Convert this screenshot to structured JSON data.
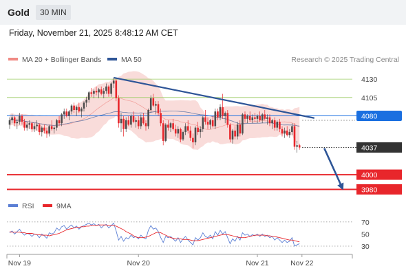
{
  "header": {
    "symbol": "Gold",
    "timeframe": "30 MIN",
    "datetime": "Friday, November 21, 2025 8:48:12 AM CET"
  },
  "legend": {
    "items": [
      {
        "label": "MA 20 + Bollinger Bands",
        "color": "#f08a84"
      },
      {
        "label": "MA 50",
        "color": "#2e5597"
      }
    ],
    "credit": "Research © 2025 Trading Central"
  },
  "rsi_legend": {
    "items": [
      {
        "label": "RSI",
        "color": "#5b7fd4"
      },
      {
        "label": "9MA",
        "color": "#e8262b"
      }
    ]
  },
  "colors": {
    "up": "#4d4d4d",
    "down": "#e8262b",
    "wick": "#555555",
    "band": "#f7d0cd",
    "ma20": "#f08a84",
    "ma50": "#2e5597",
    "trendline": "#2e5597",
    "resistance": "#9ccc65",
    "pivot": "#1a6fe0",
    "support": "#e8262b",
    "current": "#333333"
  },
  "chart_data": [
    {
      "type": "line",
      "title": "Gold 30 MIN",
      "x_ticks": [
        {
          "label": "Nov 19",
          "i": 4
        },
        {
          "label": "Nov 20",
          "i": 52
        },
        {
          "label": "Nov 21",
          "i": 100
        },
        {
          "label": "Nov 22",
          "i": 118
        }
      ],
      "ylim": [
        3972,
        4146
      ],
      "levels": [
        {
          "value": 4130,
          "label": "4130",
          "kind": "resistance"
        },
        {
          "value": 4105,
          "label": "4105",
          "kind": "resistance"
        },
        {
          "value": 4080,
          "label": "4080",
          "kind": "pivot"
        },
        {
          "value": 4037,
          "label": "4037",
          "kind": "current"
        },
        {
          "value": 4000,
          "label": "4000",
          "kind": "support"
        },
        {
          "value": 3980,
          "label": "3980",
          "kind": "support"
        }
      ],
      "trendline": {
        "from": {
          "i": 42,
          "value": 4132
        },
        "to": {
          "i": 123,
          "value": 4077
        }
      },
      "arrow": {
        "from": {
          "i": 127,
          "value": 4036
        },
        "to": {
          "i": 134,
          "value": 3984
        }
      },
      "candles": [
        [
          4068,
          4078,
          4062,
          4074
        ],
        [
          4074,
          4082,
          4070,
          4078
        ],
        [
          4078,
          4080,
          4066,
          4070
        ],
        [
          4070,
          4076,
          4062,
          4072
        ],
        [
          4072,
          4084,
          4068,
          4080
        ],
        [
          4080,
          4082,
          4068,
          4072
        ],
        [
          4072,
          4076,
          4060,
          4064
        ],
        [
          4064,
          4072,
          4060,
          4068
        ],
        [
          4068,
          4074,
          4062,
          4070
        ],
        [
          4070,
          4072,
          4058,
          4062
        ],
        [
          4062,
          4070,
          4058,
          4066
        ],
        [
          4066,
          4074,
          4060,
          4068
        ],
        [
          4068,
          4070,
          4054,
          4058
        ],
        [
          4058,
          4066,
          4052,
          4064
        ],
        [
          4064,
          4068,
          4056,
          4060
        ],
        [
          4060,
          4064,
          4050,
          4056
        ],
        [
          4056,
          4068,
          4052,
          4066
        ],
        [
          4066,
          4074,
          4060,
          4062
        ],
        [
          4062,
          4066,
          4056,
          4064
        ],
        [
          4064,
          4076,
          4060,
          4074
        ],
        [
          4074,
          4080,
          4066,
          4070
        ],
        [
          4070,
          4084,
          4066,
          4082
        ],
        [
          4082,
          4090,
          4076,
          4086
        ],
        [
          4086,
          4090,
          4078,
          4080
        ],
        [
          4080,
          4088,
          4074,
          4086
        ],
        [
          4086,
          4096,
          4082,
          4094
        ],
        [
          4094,
          4098,
          4084,
          4088
        ],
        [
          4088,
          4094,
          4080,
          4092
        ],
        [
          4092,
          4098,
          4084,
          4086
        ],
        [
          4086,
          4092,
          4078,
          4090
        ],
        [
          4090,
          4100,
          4086,
          4098
        ],
        [
          4098,
          4106,
          4092,
          4102
        ],
        [
          4102,
          4114,
          4098,
          4112
        ],
        [
          4112,
          4118,
          4106,
          4110
        ],
        [
          4110,
          4116,
          4104,
          4114
        ],
        [
          4114,
          4120,
          4108,
          4112
        ],
        [
          4112,
          4118,
          4104,
          4116
        ],
        [
          4116,
          4120,
          4108,
          4110
        ],
        [
          4110,
          4118,
          4104,
          4114
        ],
        [
          4114,
          4124,
          4110,
          4120
        ],
        [
          4120,
          4122,
          4106,
          4110
        ],
        [
          4110,
          4126,
          4106,
          4124
        ],
        [
          4124,
          4132,
          4118,
          4128
        ],
        [
          4128,
          4130,
          4100,
          4104
        ],
        [
          4104,
          4108,
          4064,
          4070
        ],
        [
          4070,
          4084,
          4058,
          4076
        ],
        [
          4076,
          4080,
          4052,
          4062
        ],
        [
          4062,
          4078,
          4058,
          4074
        ],
        [
          4074,
          4080,
          4066,
          4068
        ],
        [
          4068,
          4082,
          4064,
          4080
        ],
        [
          4080,
          4086,
          4070,
          4072
        ],
        [
          4072,
          4078,
          4064,
          4074
        ],
        [
          4074,
          4080,
          4062,
          4066
        ],
        [
          4066,
          4082,
          4062,
          4078
        ],
        [
          4078,
          4084,
          4068,
          4070
        ],
        [
          4070,
          4074,
          4060,
          4066
        ],
        [
          4066,
          4090,
          4062,
          4088
        ],
        [
          4088,
          4108,
          4084,
          4104
        ],
        [
          4104,
          4110,
          4092,
          4094
        ],
        [
          4094,
          4100,
          4082,
          4096
        ],
        [
          4096,
          4100,
          4080,
          4084
        ],
        [
          4084,
          4090,
          4066,
          4070
        ],
        [
          4070,
          4074,
          4040,
          4046
        ],
        [
          4046,
          4070,
          4044,
          4068
        ],
        [
          4068,
          4074,
          4060,
          4064
        ],
        [
          4064,
          4072,
          4058,
          4070
        ],
        [
          4070,
          4076,
          4060,
          4062
        ],
        [
          4062,
          4068,
          4052,
          4056
        ],
        [
          4056,
          4066,
          4050,
          4062
        ],
        [
          4062,
          4064,
          4044,
          4048
        ],
        [
          4048,
          4060,
          4046,
          4058
        ],
        [
          4058,
          4070,
          4054,
          4066
        ],
        [
          4066,
          4074,
          4056,
          4060
        ],
        [
          4060,
          4066,
          4046,
          4050
        ],
        [
          4050,
          4056,
          4036,
          4044
        ],
        [
          4044,
          4066,
          4040,
          4064
        ],
        [
          4064,
          4072,
          4054,
          4058
        ],
        [
          4058,
          4066,
          4050,
          4062
        ],
        [
          4062,
          4080,
          4058,
          4078
        ],
        [
          4078,
          4088,
          4068,
          4072
        ],
        [
          4072,
          4078,
          4062,
          4068
        ],
        [
          4068,
          4076,
          4062,
          4074
        ],
        [
          4074,
          4080,
          4064,
          4066
        ],
        [
          4066,
          4090,
          4062,
          4086
        ],
        [
          4086,
          4090,
          4074,
          4078
        ],
        [
          4078,
          4096,
          4074,
          4092
        ],
        [
          4092,
          4110,
          4076,
          4080
        ],
        [
          4080,
          4086,
          4070,
          4084
        ],
        [
          4084,
          4088,
          4064,
          4068
        ],
        [
          4068,
          4070,
          4044,
          4048
        ],
        [
          4048,
          4062,
          4042,
          4060
        ],
        [
          4060,
          4066,
          4048,
          4052
        ],
        [
          4052,
          4072,
          4048,
          4068
        ],
        [
          4068,
          4074,
          4052,
          4056
        ],
        [
          4056,
          4084,
          4054,
          4082
        ],
        [
          4082,
          4086,
          4072,
          4076
        ],
        [
          4076,
          4082,
          4070,
          4080
        ],
        [
          4080,
          4086,
          4072,
          4074
        ],
        [
          4074,
          4082,
          4070,
          4078
        ],
        [
          4078,
          4084,
          4072,
          4076
        ],
        [
          4076,
          4082,
          4070,
          4080
        ],
        [
          4080,
          4086,
          4072,
          4074
        ],
        [
          4074,
          4084,
          4070,
          4082
        ],
        [
          4082,
          4088,
          4074,
          4076
        ],
        [
          4076,
          4082,
          4068,
          4078
        ],
        [
          4078,
          4082,
          4066,
          4070
        ],
        [
          4070,
          4076,
          4062,
          4074
        ],
        [
          4074,
          4078,
          4060,
          4064
        ],
        [
          4064,
          4074,
          4060,
          4072
        ],
        [
          4072,
          4076,
          4058,
          4062
        ],
        [
          4062,
          4066,
          4052,
          4056
        ],
        [
          4056,
          4064,
          4050,
          4060
        ],
        [
          4060,
          4066,
          4052,
          4054
        ],
        [
          4054,
          4062,
          4050,
          4058
        ],
        [
          4058,
          4070,
          4054,
          4066
        ],
        [
          4066,
          4070,
          4034,
          4038
        ],
        [
          4038,
          4046,
          4030,
          4040
        ],
        [
          4040,
          4042,
          4034,
          4037
        ]
      ]
    },
    {
      "type": "line",
      "title": "RSI",
      "ylim": [
        22,
        80
      ],
      "y_ticks": [
        30,
        50,
        70
      ],
      "levels": [
        30,
        70
      ],
      "series": [
        {
          "name": "RSI",
          "color": "#5b7fd4",
          "values": [
            52,
            55,
            50,
            54,
            58,
            52,
            48,
            51,
            50,
            46,
            50,
            49,
            44,
            50,
            47,
            43,
            52,
            50,
            52,
            60,
            56,
            62,
            64,
            58,
            62,
            65,
            60,
            63,
            58,
            62,
            64,
            66,
            68,
            65,
            67,
            64,
            66,
            60,
            64,
            66,
            60,
            64,
            68,
            55,
            40,
            46,
            38,
            44,
            42,
            48,
            44,
            46,
            42,
            48,
            44,
            42,
            56,
            64,
            58,
            60,
            54,
            44,
            36,
            46,
            44,
            46,
            42,
            38,
            44,
            36,
            42,
            46,
            40,
            36,
            32,
            44,
            40,
            44,
            52,
            46,
            44,
            48,
            42,
            54,
            48,
            56,
            50,
            54,
            44,
            34,
            42,
            38,
            46,
            40,
            52,
            48,
            50,
            46,
            49,
            47,
            50,
            46,
            50,
            46,
            48,
            44,
            46,
            40,
            44,
            40,
            36,
            40,
            36,
            38,
            44,
            30,
            32,
            34
          ]
        },
        {
          "name": "9MA",
          "color": "#e8262b",
          "values": [
            54,
            53,
            53,
            53,
            53,
            52,
            52,
            51,
            51,
            51,
            50,
            49,
            49,
            48,
            48,
            48,
            47,
            48,
            49,
            50,
            51,
            53,
            55,
            57,
            58,
            59,
            60,
            61,
            61,
            62,
            62,
            63,
            63,
            64,
            64,
            64,
            65,
            65,
            65,
            65,
            64,
            64,
            64,
            63,
            61,
            59,
            57,
            54,
            52,
            50,
            47,
            45,
            44,
            44,
            44,
            45,
            46,
            48,
            50,
            52,
            53,
            52,
            50,
            48,
            46,
            44,
            43,
            42,
            42,
            42,
            41,
            41,
            41,
            40,
            39,
            39,
            39,
            40,
            41,
            42,
            43,
            44,
            45,
            46,
            47,
            48,
            49,
            49,
            49,
            48,
            47,
            46,
            45,
            44,
            44,
            44,
            45,
            46,
            47,
            48,
            48,
            48,
            48,
            48,
            47,
            47,
            46,
            46,
            45,
            44,
            43,
            42,
            41,
            40,
            40,
            39,
            38,
            37
          ]
        }
      ]
    }
  ]
}
